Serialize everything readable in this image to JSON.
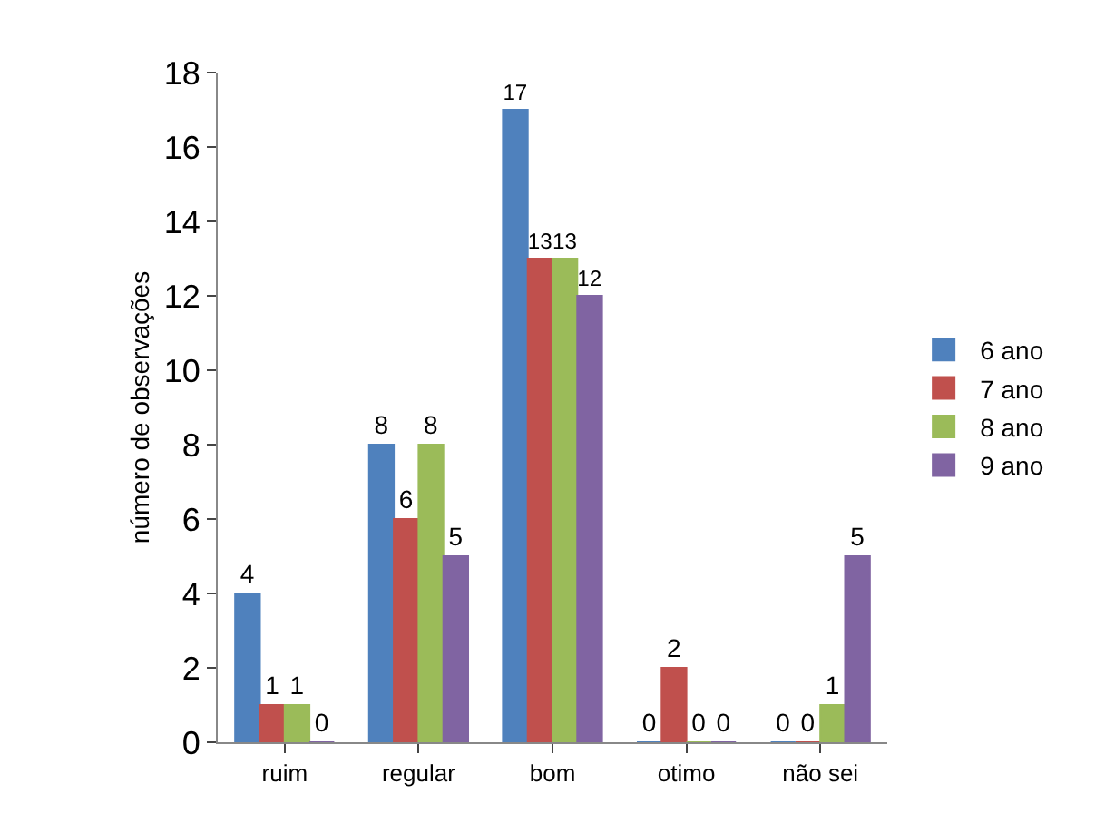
{
  "chart_data": {
    "type": "bar",
    "ylabel": "número de observações",
    "categories": [
      "ruim",
      "regular",
      "bom",
      "otimo",
      "não sei"
    ],
    "series": [
      {
        "name": "6 ano",
        "color": "#4f81bd",
        "values": [
          4,
          8,
          17,
          0,
          0
        ]
      },
      {
        "name": "7 ano",
        "color": "#c0504d",
        "values": [
          1,
          6,
          13,
          2,
          0
        ]
      },
      {
        "name": "8 ano",
        "color": "#9bbb59",
        "values": [
          1,
          8,
          13,
          0,
          1
        ]
      },
      {
        "name": "9 ano",
        "color": "#8064a2",
        "values": [
          0,
          5,
          12,
          0,
          5
        ]
      }
    ],
    "ylim": [
      0,
      18
    ],
    "yticks": [
      0,
      2,
      4,
      6,
      8,
      10,
      12,
      14,
      16,
      18
    ],
    "data_labels": true,
    "legend": "right",
    "grid": false
  }
}
